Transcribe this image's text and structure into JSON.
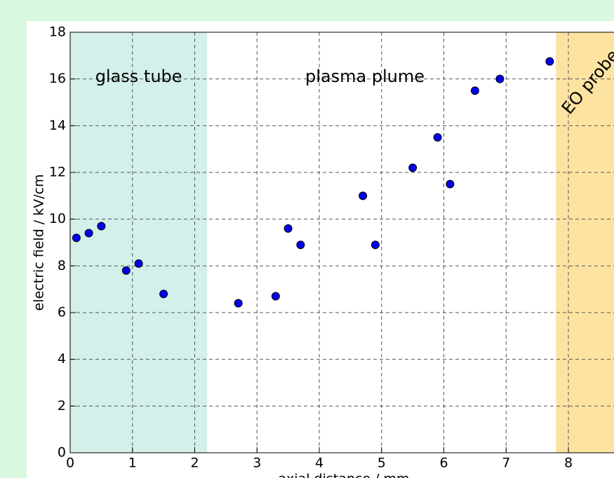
{
  "chart_data": {
    "type": "scatter",
    "x_label": "axial distance / mm",
    "y_label": "electric field / kV/cm",
    "x": [
      0.1,
      0.3,
      0.5,
      0.9,
      1.1,
      1.5,
      2.7,
      3.3,
      3.5,
      3.7,
      4.7,
      4.9,
      5.5,
      5.9,
      6.1,
      6.5,
      6.9,
      7.7
    ],
    "y": [
      9.2,
      9.4,
      9.7,
      7.8,
      8.1,
      6.8,
      6.4,
      6.7,
      9.6,
      8.9,
      11.0,
      8.9,
      12.2,
      13.5,
      11.5,
      15.5,
      16.0,
      16.75
    ],
    "color": "#0000ee",
    "xlim": [
      0,
      9
    ],
    "ylim": [
      0,
      18
    ],
    "xticks": [
      0,
      1,
      2,
      3,
      4,
      5,
      6,
      7,
      8
    ],
    "yticks": [
      0,
      2,
      4,
      6,
      8,
      10,
      12,
      14,
      16,
      18
    ],
    "grid": true,
    "regions": [
      {
        "label": "glass tube",
        "x": [
          0,
          2.2
        ],
        "color": "#d3f0ea"
      },
      {
        "label": "plasma plume",
        "x": [
          2.2,
          7.8
        ],
        "color": "#ffffff"
      },
      {
        "label": "EO probe alumina",
        "x": [
          7.8,
          9
        ],
        "color": "#fde3a2"
      }
    ]
  }
}
